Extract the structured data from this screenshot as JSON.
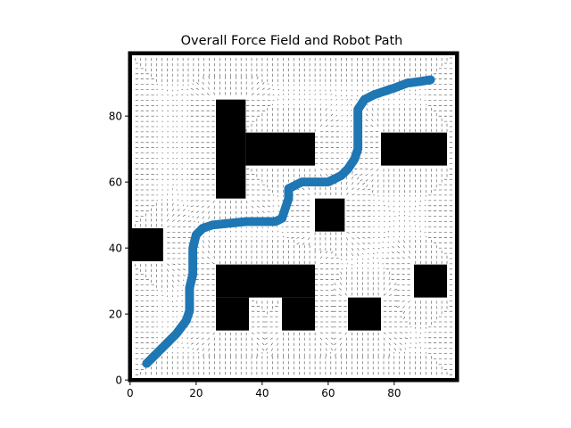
{
  "chart_data": {
    "type": "scatter",
    "title": "Overall Force Field and Robot Path",
    "xlabel": "",
    "ylabel": "",
    "xlim": [
      -0.5,
      99.5
    ],
    "ylim": [
      -0.5,
      99.5
    ],
    "xticks": [
      0,
      20,
      40,
      60,
      80
    ],
    "yticks": [
      0,
      20,
      40,
      60,
      80
    ],
    "xtick_labels": [
      "0",
      "20",
      "40",
      "60",
      "80"
    ],
    "ytick_labels": [
      "0",
      "20",
      "40",
      "60",
      "80"
    ],
    "grid": false,
    "legend": "none",
    "background_layer": "quiver force field (dense small arrows)",
    "obstacles": [
      {
        "x0": 26,
        "x1": 35,
        "y0": 55,
        "y1": 85
      },
      {
        "x0": 35,
        "x1": 56,
        "y0": 65,
        "y1": 75
      },
      {
        "x0": 76,
        "x1": 96,
        "y0": 65,
        "y1": 75
      },
      {
        "x0": 56,
        "x1": 65,
        "y0": 45,
        "y1": 55
      },
      {
        "x0": 0,
        "x1": 10,
        "y0": 36,
        "y1": 46
      },
      {
        "x0": 26,
        "x1": 56,
        "y0": 25,
        "y1": 35
      },
      {
        "x0": 26,
        "x1": 36,
        "y0": 15,
        "y1": 25
      },
      {
        "x0": 46,
        "x1": 56,
        "y0": 15,
        "y1": 25
      },
      {
        "x0": 66,
        "x1": 76,
        "y0": 15,
        "y1": 25
      },
      {
        "x0": 86,
        "x1": 96,
        "y0": 25,
        "y1": 35
      }
    ],
    "series": [
      {
        "color": "#1f77b4",
        "points": [
          [
            5,
            5
          ],
          [
            8,
            8
          ],
          [
            11,
            11
          ],
          [
            14,
            14
          ],
          [
            17,
            18
          ],
          [
            18,
            21
          ],
          [
            18,
            25
          ],
          [
            18,
            28
          ],
          [
            19,
            32
          ],
          [
            19,
            36
          ],
          [
            19,
            40
          ],
          [
            20,
            44
          ],
          [
            22,
            46
          ],
          [
            25,
            47
          ],
          [
            30,
            47.5
          ],
          [
            35,
            48
          ],
          [
            40,
            48
          ],
          [
            44,
            48
          ],
          [
            46,
            49
          ],
          [
            47,
            52
          ],
          [
            48,
            55
          ],
          [
            48,
            58
          ],
          [
            50,
            59
          ],
          [
            52,
            60
          ],
          [
            56,
            60
          ],
          [
            60,
            60
          ],
          [
            62,
            61
          ],
          [
            64,
            62
          ],
          [
            66,
            64
          ],
          [
            68,
            67
          ],
          [
            69,
            70
          ],
          [
            69,
            74
          ],
          [
            69,
            78
          ],
          [
            69,
            82
          ],
          [
            71,
            85
          ],
          [
            74,
            86.5
          ],
          [
            77,
            87.5
          ],
          [
            80,
            88.5
          ],
          [
            84,
            90
          ],
          [
            88,
            90.5
          ],
          [
            91,
            91
          ]
        ]
      }
    ],
    "colors": {
      "obstacle": "#000000",
      "path": "#1f77b4",
      "field_arrows": "#000000",
      "border": "#000000"
    }
  }
}
